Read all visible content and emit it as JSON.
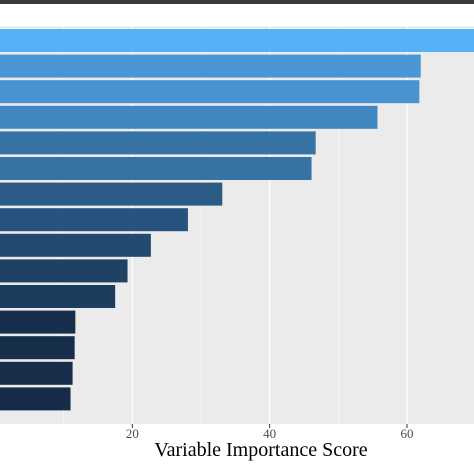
{
  "chart_data": {
    "type": "bar",
    "orientation": "horizontal",
    "title": "",
    "xlabel": "Variable Importance Score",
    "ylabel": "",
    "xlim": [
      0,
      70
    ],
    "xticks": [
      20,
      40,
      60
    ],
    "grid": true,
    "categories": [
      "",
      "",
      "",
      "",
      "",
      "",
      "",
      "",
      "",
      "",
      "",
      "",
      "",
      "",
      ""
    ],
    "values": [
      70,
      62,
      61.8,
      55.7,
      46.7,
      46.1,
      33.1,
      28.1,
      22.7,
      19.3,
      17.5,
      11.7,
      11.6,
      11.3,
      11.0
    ],
    "colors": [
      "#56b1f7",
      "#4a96d4",
      "#4893d0",
      "#4188c2",
      "#3873a6",
      "#3871a3",
      "#2c5b85",
      "#285380",
      "#234a70",
      "#1f4164",
      "#1d3d5f",
      "#172f4d",
      "#172e4b",
      "#172d4a",
      "#162c49"
    ],
    "colors_meaning": {
      "high": "#56b1f7",
      "low": "#132b43"
    },
    "legend": "none"
  }
}
